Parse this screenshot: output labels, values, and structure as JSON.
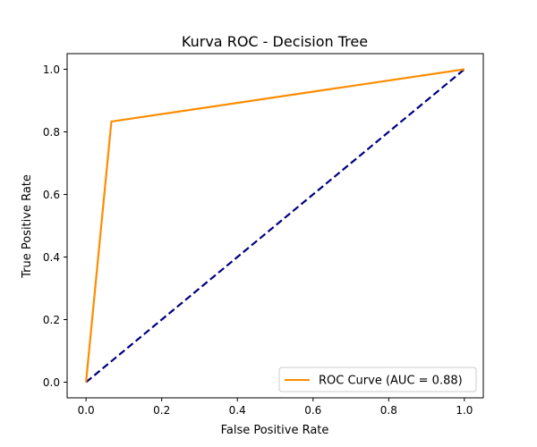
{
  "chart_data": {
    "type": "line",
    "title": "Kurva ROC - Decision Tree",
    "xlabel": "False Positive Rate",
    "ylabel": "True Positive Rate",
    "xlim": [
      -0.05,
      1.05
    ],
    "ylim": [
      -0.05,
      1.05
    ],
    "xticks": [
      0.0,
      0.2,
      0.4,
      0.6,
      0.8,
      1.0
    ],
    "yticks": [
      0.0,
      0.2,
      0.4,
      0.6,
      0.8,
      1.0
    ],
    "xtick_labels": [
      "0.0",
      "0.2",
      "0.4",
      "0.6",
      "0.8",
      "1.0"
    ],
    "ytick_labels": [
      "0.0",
      "0.2",
      "0.4",
      "0.6",
      "0.8",
      "1.0"
    ],
    "grid": false,
    "legend_position": "lower-right",
    "series": [
      {
        "name": "ROC Curve (AUC = 0.88)",
        "color": "#ff8c00",
        "style": "solid",
        "x": [
          0.0,
          0.067,
          1.0
        ],
        "y": [
          0.0,
          0.833,
          1.0
        ],
        "in_legend": true
      },
      {
        "name": "chance diagonal",
        "color": "#000080",
        "style": "dashed",
        "x": [
          0.0,
          1.0
        ],
        "y": [
          0.0,
          1.0
        ],
        "in_legend": false
      }
    ]
  }
}
